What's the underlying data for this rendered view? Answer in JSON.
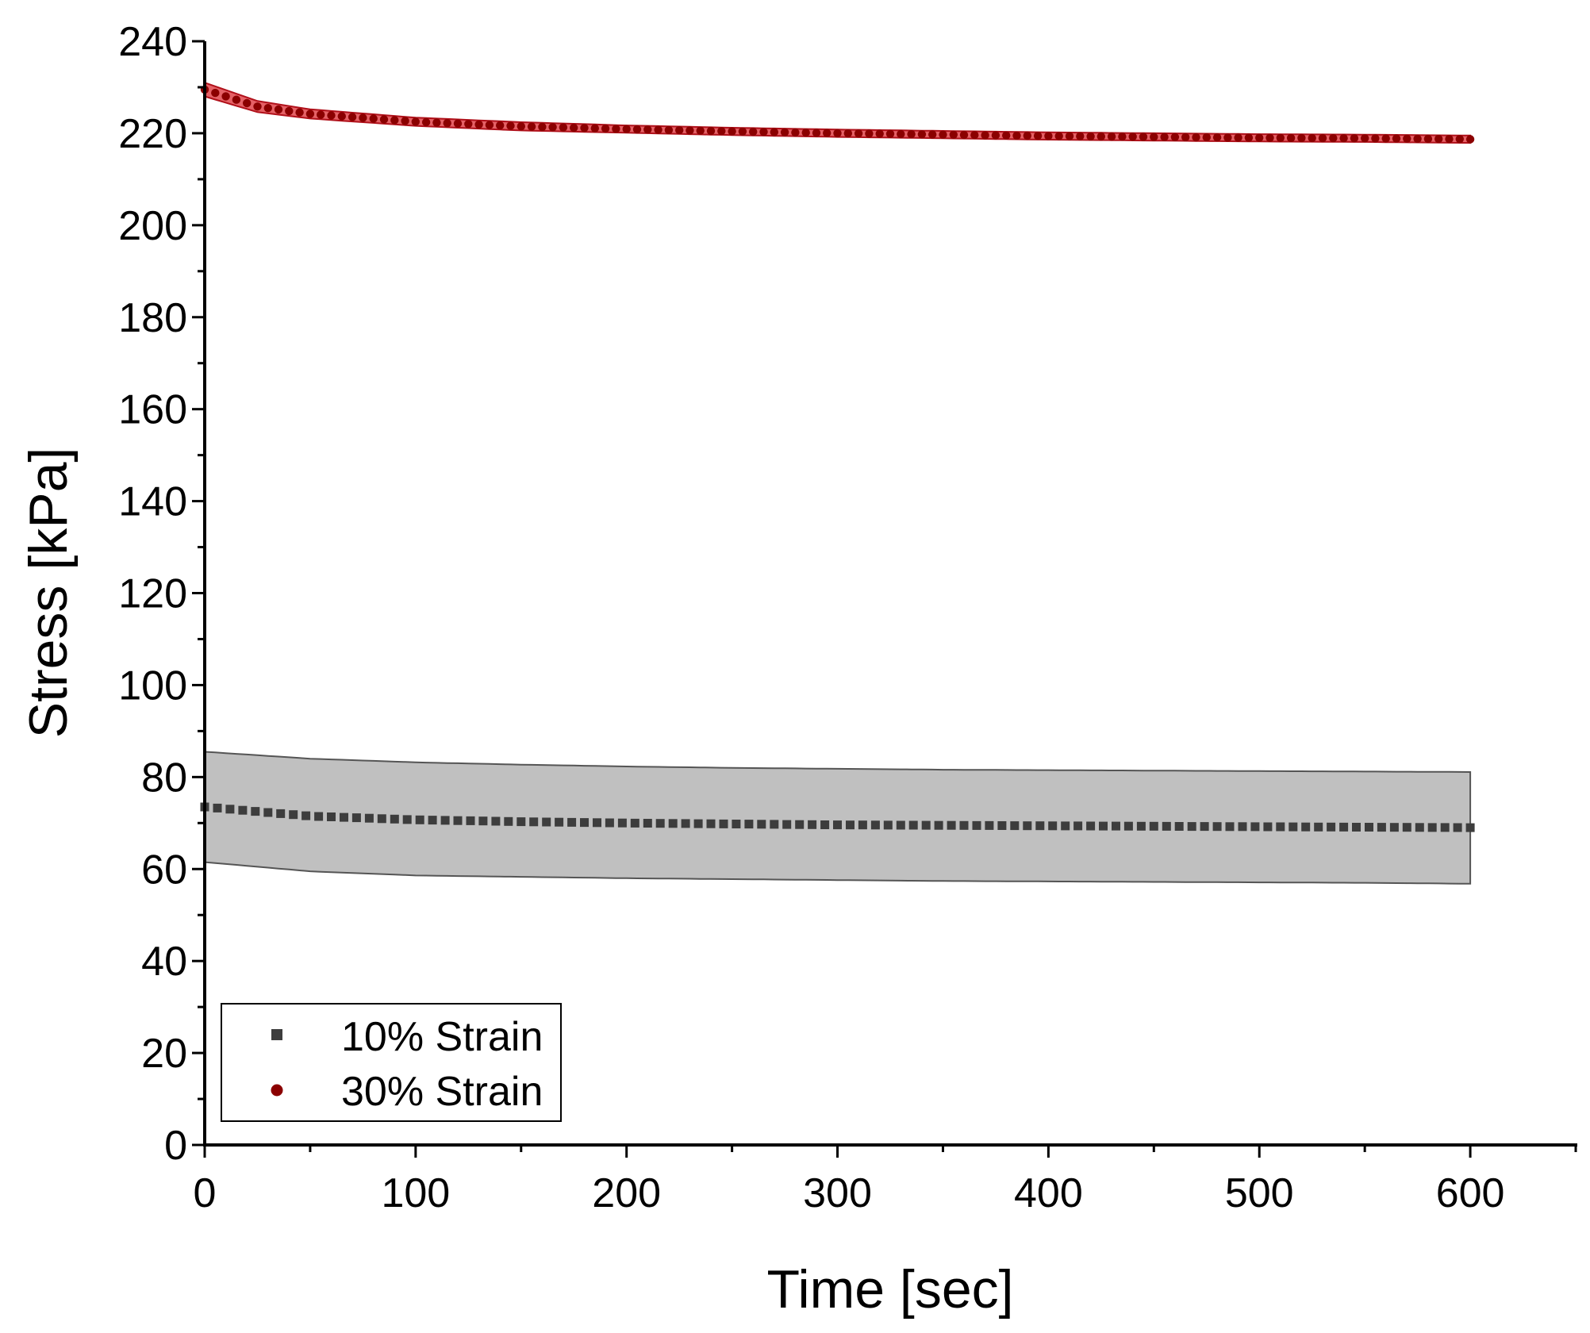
{
  "chart_data": {
    "type": "scatter",
    "title": "",
    "xlabel": "Time [sec]",
    "ylabel": "Stress [kPa]",
    "xlim": [
      0,
      650
    ],
    "ylim": [
      0,
      240
    ],
    "xticks": [
      0,
      100,
      200,
      300,
      400,
      500,
      600
    ],
    "xtick_labels": [
      "0",
      "100",
      "200",
      "300",
      "400",
      "500",
      "600"
    ],
    "yticks": [
      0,
      20,
      40,
      60,
      80,
      100,
      120,
      140,
      160,
      180,
      200,
      220,
      240
    ],
    "ytick_labels": [
      "0",
      "20",
      "40",
      "60",
      "80",
      "100",
      "120",
      "140",
      "160",
      "180",
      "200",
      "220",
      "240"
    ],
    "grid": false,
    "legend_position": "bottom-left",
    "series": [
      {
        "name": "10% Strain",
        "marker": "square",
        "color": "#3d3d3d",
        "band_color": "#c0c0c0",
        "x": [
          0,
          50,
          100,
          150,
          200,
          250,
          300,
          350,
          400,
          450,
          500,
          550,
          600
        ],
        "mean": [
          73.5,
          71.5,
          70.7,
          70.3,
          70.0,
          69.8,
          69.6,
          69.5,
          69.4,
          69.3,
          69.2,
          69.1,
          69.0
        ],
        "upper": [
          85.5,
          84.0,
          83.2,
          82.7,
          82.3,
          82.0,
          81.8,
          81.6,
          81.5,
          81.4,
          81.3,
          81.2,
          81.1
        ],
        "lower": [
          61.5,
          59.5,
          58.6,
          58.3,
          58.0,
          57.8,
          57.6,
          57.4,
          57.3,
          57.2,
          57.1,
          57.0,
          56.8
        ]
      },
      {
        "name": "30% Strain",
        "marker": "circle",
        "color": "#8b0000",
        "band_color": "#e0454b",
        "x": [
          0,
          25,
          50,
          100,
          150,
          200,
          250,
          300,
          350,
          400,
          450,
          500,
          550,
          600
        ],
        "mean": [
          229.5,
          225.8,
          224.2,
          222.5,
          221.5,
          220.9,
          220.4,
          220.0,
          219.7,
          219.4,
          219.2,
          219.0,
          218.9,
          218.7
        ],
        "upper": [
          231.0,
          227.0,
          225.2,
          223.4,
          222.4,
          221.7,
          221.2,
          220.8,
          220.5,
          220.2,
          220.0,
          219.8,
          219.7,
          219.5
        ],
        "lower": [
          228.0,
          224.6,
          223.2,
          221.6,
          220.6,
          220.1,
          219.6,
          219.2,
          218.9,
          218.6,
          218.4,
          218.2,
          218.1,
          217.9
        ]
      }
    ]
  }
}
